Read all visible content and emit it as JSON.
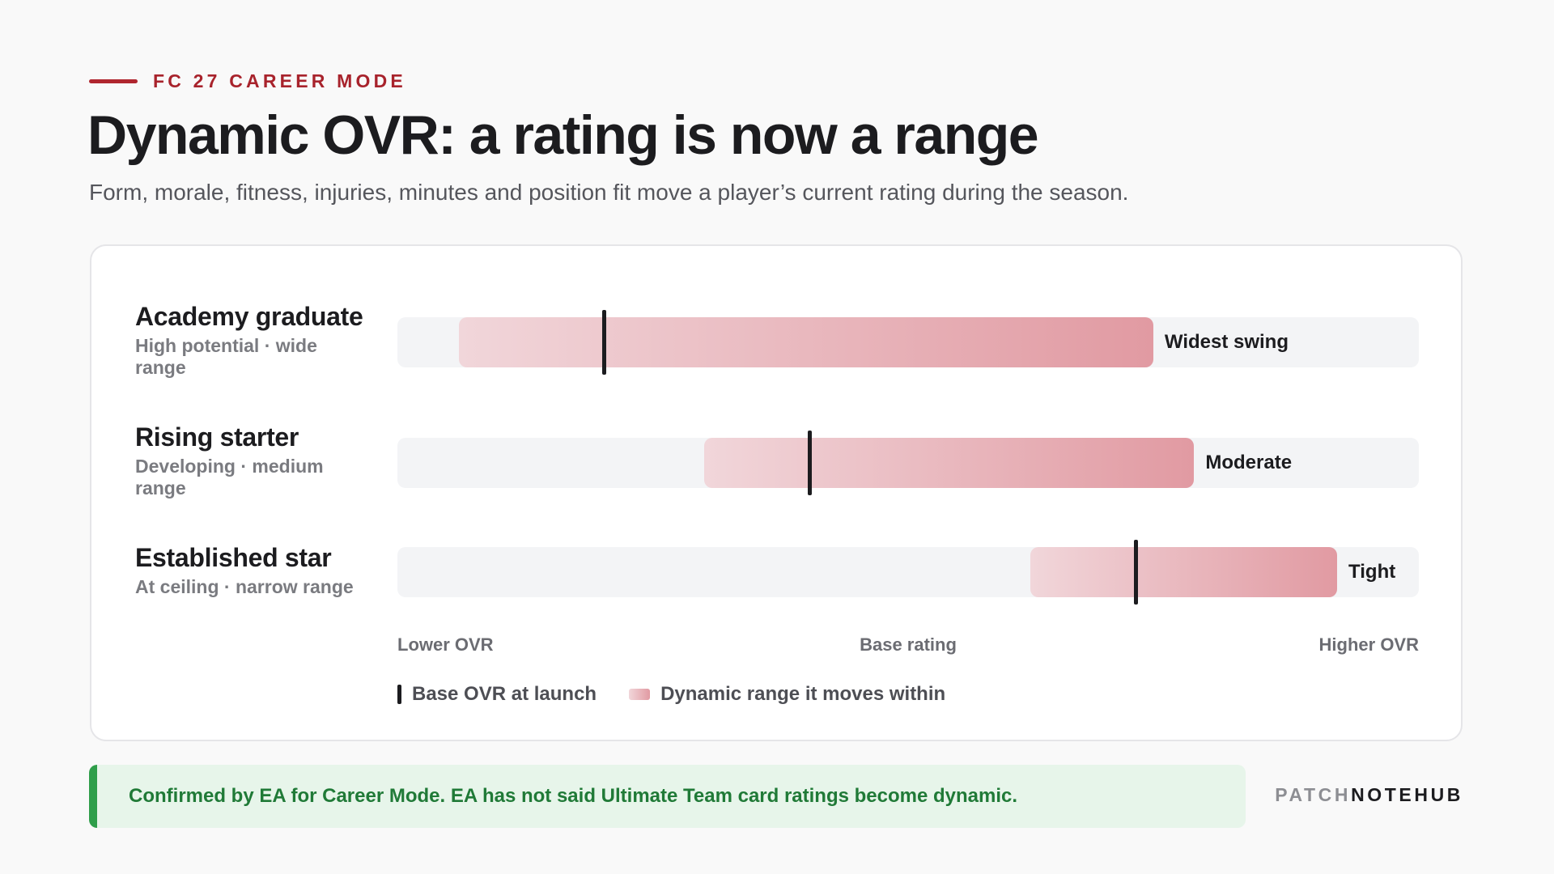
{
  "eyebrow": "FC 27 CAREER MODE",
  "title": "Dynamic OVR: a rating is now a range",
  "subtitle": "Form, morale, fitness, injuries, minutes and position fit move a player’s current rating during the season.",
  "chart_data": {
    "type": "range-bar",
    "x_scale_note": "unitless position from Lower OVR (0) to Higher OVR (1)",
    "axis": {
      "left": "Lower OVR",
      "center": "Base rating",
      "right": "Higher OVR"
    },
    "rows": [
      {
        "name": "Academy graduate",
        "description": "High potential · wide range",
        "range_start": 0.06,
        "range_end": 0.74,
        "base": 0.202,
        "tag": "Widest swing"
      },
      {
        "name": "Rising starter",
        "description": "Developing · medium range",
        "range_start": 0.3,
        "range_end": 0.78,
        "base": 0.403,
        "tag": "Moderate"
      },
      {
        "name": "Established star",
        "description": "At ceiling · narrow range",
        "range_start": 0.62,
        "range_end": 0.92,
        "base": 0.723,
        "tag": "Tight"
      }
    ],
    "legend": [
      {
        "label": "Base OVR at launch",
        "kind": "marker",
        "color": "#1c1c1f"
      },
      {
        "label": "Dynamic range it moves within",
        "kind": "range",
        "color": "#e19aa2"
      }
    ]
  },
  "note": "Confirmed by EA for Career Mode. EA has not said Ultimate Team card ratings become dynamic.",
  "brand": {
    "part1": "PATCH",
    "part2": "NOTEHUB"
  },
  "colors": {
    "accent": "#b0262f",
    "note_green": "#2f9e4a",
    "range_start": "#f1d6da",
    "range_end": "#e19aa2"
  }
}
